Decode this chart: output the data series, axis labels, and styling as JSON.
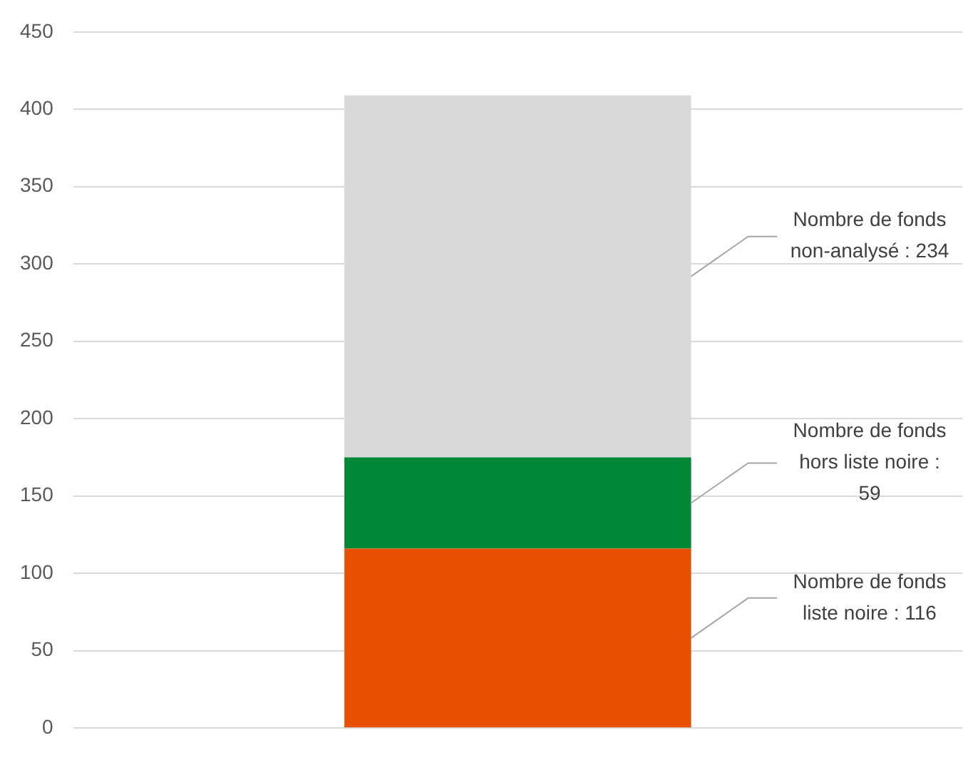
{
  "chart_data": {
    "type": "bar",
    "stacked": true,
    "categories": [
      null
    ],
    "series": [
      {
        "color": "#e85000",
        "values": [
          116
        ],
        "value_labels": [
          "Nombre de fonds liste noire : 116"
        ]
      },
      {
        "color": "#008837",
        "values": [
          59
        ],
        "value_labels": [
          "Nombre de fonds hors liste noire : 59"
        ]
      },
      {
        "color": "#d9d9d9",
        "values": [
          234
        ],
        "value_labels": [
          "Nombre de fonds non-analysé : 234"
        ]
      }
    ],
    "ylim": [
      0,
      450
    ],
    "yticks": [
      0,
      50,
      100,
      150,
      200,
      250,
      300,
      350,
      400,
      450
    ],
    "grid": "y"
  }
}
